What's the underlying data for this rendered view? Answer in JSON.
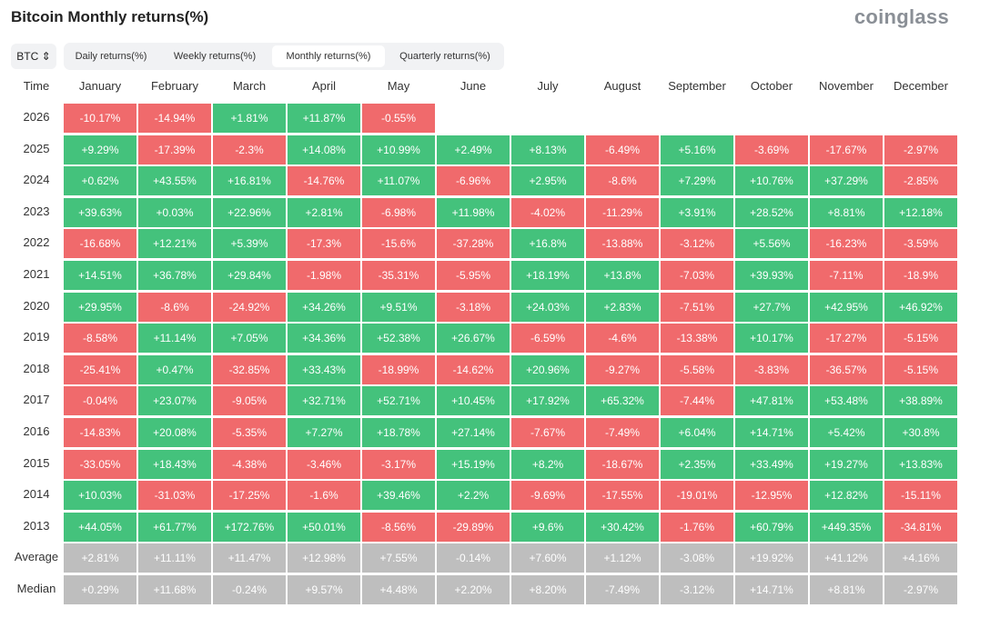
{
  "header": {
    "title": "Bitcoin Monthly returns(%)",
    "brand": "coinglass"
  },
  "controls": {
    "asset": "BTC",
    "tabs": [
      "Daily returns(%)",
      "Weekly returns(%)",
      "Monthly returns(%)",
      "Quarterly returns(%)"
    ],
    "active_tab": 2
  },
  "colors": {
    "up": "#44c27c",
    "down": "#f06a6c",
    "summary": "#bebebe"
  },
  "table": {
    "columns": [
      "Time",
      "January",
      "February",
      "March",
      "April",
      "May",
      "June",
      "July",
      "August",
      "September",
      "October",
      "November",
      "December"
    ],
    "rows": [
      {
        "label": "2026",
        "cells": [
          "-10.17%",
          "-14.94%",
          "+1.81%",
          "+11.87%",
          "-0.55%",
          null,
          null,
          null,
          null,
          null,
          null,
          null
        ]
      },
      {
        "label": "2025",
        "cells": [
          "+9.29%",
          "-17.39%",
          "-2.3%",
          "+14.08%",
          "+10.99%",
          "+2.49%",
          "+8.13%",
          "-6.49%",
          "+5.16%",
          "-3.69%",
          "-17.67%",
          "-2.97%"
        ]
      },
      {
        "label": "2024",
        "cells": [
          "+0.62%",
          "+43.55%",
          "+16.81%",
          "-14.76%",
          "+11.07%",
          "-6.96%",
          "+2.95%",
          "-8.6%",
          "+7.29%",
          "+10.76%",
          "+37.29%",
          "-2.85%"
        ]
      },
      {
        "label": "2023",
        "cells": [
          "+39.63%",
          "+0.03%",
          "+22.96%",
          "+2.81%",
          "-6.98%",
          "+11.98%",
          "-4.02%",
          "-11.29%",
          "+3.91%",
          "+28.52%",
          "+8.81%",
          "+12.18%"
        ]
      },
      {
        "label": "2022",
        "cells": [
          "-16.68%",
          "+12.21%",
          "+5.39%",
          "-17.3%",
          "-15.6%",
          "-37.28%",
          "+16.8%",
          "-13.88%",
          "-3.12%",
          "+5.56%",
          "-16.23%",
          "-3.59%"
        ]
      },
      {
        "label": "2021",
        "cells": [
          "+14.51%",
          "+36.78%",
          "+29.84%",
          "-1.98%",
          "-35.31%",
          "-5.95%",
          "+18.19%",
          "+13.8%",
          "-7.03%",
          "+39.93%",
          "-7.11%",
          "-18.9%"
        ]
      },
      {
        "label": "2020",
        "cells": [
          "+29.95%",
          "-8.6%",
          "-24.92%",
          "+34.26%",
          "+9.51%",
          "-3.18%",
          "+24.03%",
          "+2.83%",
          "-7.51%",
          "+27.7%",
          "+42.95%",
          "+46.92%"
        ]
      },
      {
        "label": "2019",
        "cells": [
          "-8.58%",
          "+11.14%",
          "+7.05%",
          "+34.36%",
          "+52.38%",
          "+26.67%",
          "-6.59%",
          "-4.6%",
          "-13.38%",
          "+10.17%",
          "-17.27%",
          "-5.15%"
        ]
      },
      {
        "label": "2018",
        "cells": [
          "-25.41%",
          "+0.47%",
          "-32.85%",
          "+33.43%",
          "-18.99%",
          "-14.62%",
          "+20.96%",
          "-9.27%",
          "-5.58%",
          "-3.83%",
          "-36.57%",
          "-5.15%"
        ]
      },
      {
        "label": "2017",
        "cells": [
          "-0.04%",
          "+23.07%",
          "-9.05%",
          "+32.71%",
          "+52.71%",
          "+10.45%",
          "+17.92%",
          "+65.32%",
          "-7.44%",
          "+47.81%",
          "+53.48%",
          "+38.89%"
        ]
      },
      {
        "label": "2016",
        "cells": [
          "-14.83%",
          "+20.08%",
          "-5.35%",
          "+7.27%",
          "+18.78%",
          "+27.14%",
          "-7.67%",
          "-7.49%",
          "+6.04%",
          "+14.71%",
          "+5.42%",
          "+30.8%"
        ]
      },
      {
        "label": "2015",
        "cells": [
          "-33.05%",
          "+18.43%",
          "-4.38%",
          "-3.46%",
          "-3.17%",
          "+15.19%",
          "+8.2%",
          "-18.67%",
          "+2.35%",
          "+33.49%",
          "+19.27%",
          "+13.83%"
        ]
      },
      {
        "label": "2014",
        "cells": [
          "+10.03%",
          "-31.03%",
          "-17.25%",
          "-1.6%",
          "+39.46%",
          "+2.2%",
          "-9.69%",
          "-17.55%",
          "-19.01%",
          "-12.95%",
          "+12.82%",
          "-15.11%"
        ]
      },
      {
        "label": "2013",
        "cells": [
          "+44.05%",
          "+61.77%",
          "+172.76%",
          "+50.01%",
          "-8.56%",
          "-29.89%",
          "+9.6%",
          "+30.42%",
          "-1.76%",
          "+60.79%",
          "+449.35%",
          "-34.81%"
        ]
      }
    ],
    "summary_rows": [
      {
        "label": "Average",
        "cells": [
          "+2.81%",
          "+11.11%",
          "+11.47%",
          "+12.98%",
          "+7.55%",
          "-0.14%",
          "+7.60%",
          "+1.12%",
          "-3.08%",
          "+19.92%",
          "+41.12%",
          "+4.16%"
        ]
      },
      {
        "label": "Median",
        "cells": [
          "+0.29%",
          "+11.68%",
          "-0.24%",
          "+9.57%",
          "+4.48%",
          "+2.20%",
          "+8.20%",
          "-7.49%",
          "-3.12%",
          "+14.71%",
          "+8.81%",
          "-2.97%"
        ]
      }
    ]
  }
}
